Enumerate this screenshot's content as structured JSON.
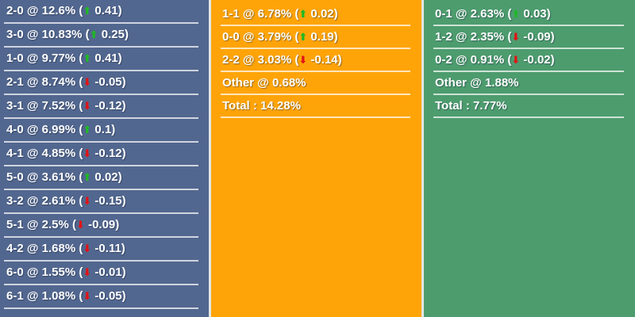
{
  "panels": [
    {
      "name": "home-win",
      "bg": "#52678F",
      "rows": [
        {
          "score": "2-0",
          "pct": "12.6%",
          "dir": "up",
          "delta": "0.41"
        },
        {
          "score": "3-0",
          "pct": "10.83%",
          "dir": "up",
          "delta": "0.25"
        },
        {
          "score": "1-0",
          "pct": "9.77%",
          "dir": "up",
          "delta": "0.41"
        },
        {
          "score": "2-1",
          "pct": "8.74%",
          "dir": "down",
          "delta": "-0.05"
        },
        {
          "score": "3-1",
          "pct": "7.52%",
          "dir": "down",
          "delta": "-0.12"
        },
        {
          "score": "4-0",
          "pct": "6.99%",
          "dir": "up",
          "delta": "0.1"
        },
        {
          "score": "4-1",
          "pct": "4.85%",
          "dir": "down",
          "delta": "-0.12"
        },
        {
          "score": "5-0",
          "pct": "3.61%",
          "dir": "up",
          "delta": "0.02"
        },
        {
          "score": "3-2",
          "pct": "2.61%",
          "dir": "down",
          "delta": "-0.15"
        },
        {
          "score": "5-1",
          "pct": "2.5%",
          "dir": "down",
          "delta": "-0.09"
        },
        {
          "score": "4-2",
          "pct": "1.68%",
          "dir": "down",
          "delta": "-0.11"
        },
        {
          "score": "6-0",
          "pct": "1.55%",
          "dir": "down",
          "delta": "-0.01"
        },
        {
          "score": "6-1",
          "pct": "1.08%",
          "dir": "down",
          "delta": "-0.05"
        }
      ]
    },
    {
      "name": "draw",
      "bg": "#FFA408",
      "rows": [
        {
          "score": "1-1",
          "pct": "6.78%",
          "dir": "up",
          "delta": "0.02"
        },
        {
          "score": "0-0",
          "pct": "3.79%",
          "dir": "up",
          "delta": "0.19"
        },
        {
          "score": "2-2",
          "pct": "3.03%",
          "dir": "down",
          "delta": "-0.14"
        },
        {
          "score": "Other",
          "pct": "0.68%"
        }
      ],
      "total_label": "Total",
      "total": "14.28%"
    },
    {
      "name": "away-win",
      "bg": "#4D9C6E",
      "rows": [
        {
          "score": "0-1",
          "pct": "2.63%",
          "dir": "up",
          "delta": "0.03"
        },
        {
          "score": "1-2",
          "pct": "2.35%",
          "dir": "down",
          "delta": "-0.09"
        },
        {
          "score": "0-2",
          "pct": "0.91%",
          "dir": "down",
          "delta": "-0.02"
        },
        {
          "score": "Other",
          "pct": "1.88%"
        }
      ],
      "total_label": "Total",
      "total": "7.77%"
    }
  ],
  "format": {
    "at_separator": "@",
    "total_separator": ":"
  },
  "icons": {
    "up": "⬆",
    "down": "⬇"
  },
  "colors": {
    "home_bg": "#52678F",
    "draw_bg": "#FFA408",
    "away_bg": "#4D9C6E",
    "trend_up": "#1FB824",
    "trend_down": "#E11414",
    "text": "#FFFFFF",
    "row_divider": "rgba(255,255,255,0.72)",
    "panel_divider": "#E3E6E3"
  }
}
